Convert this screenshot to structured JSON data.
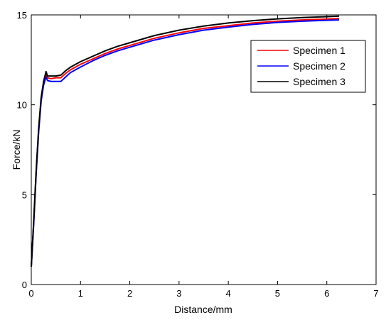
{
  "chart_data": {
    "type": "line",
    "title": "",
    "xlabel": "Distance/mm",
    "ylabel": "Force/kN",
    "xlim": [
      0,
      7
    ],
    "ylim": [
      0,
      15
    ],
    "xticks": [
      0,
      1,
      2,
      3,
      4,
      5,
      6,
      7
    ],
    "yticks": [
      0,
      5,
      10,
      15
    ],
    "grid": false,
    "legend_position": "top-right",
    "series": [
      {
        "name": "Specimen 1",
        "color": "#ff0000",
        "points": [
          [
            0,
            1.0
          ],
          [
            0.05,
            3.5
          ],
          [
            0.1,
            6.3
          ],
          [
            0.15,
            8.6
          ],
          [
            0.2,
            10.3
          ],
          [
            0.25,
            11.2
          ],
          [
            0.3,
            11.7
          ],
          [
            0.33,
            11.5
          ],
          [
            0.4,
            11.45
          ],
          [
            0.5,
            11.5
          ],
          [
            0.6,
            11.5
          ],
          [
            0.7,
            11.75
          ],
          [
            0.8,
            11.95
          ],
          [
            1.0,
            12.25
          ],
          [
            1.25,
            12.55
          ],
          [
            1.5,
            12.85
          ],
          [
            1.75,
            13.1
          ],
          [
            2.0,
            13.3
          ],
          [
            2.5,
            13.7
          ],
          [
            3.0,
            14.0
          ],
          [
            3.5,
            14.25
          ],
          [
            4.0,
            14.4
          ],
          [
            4.5,
            14.55
          ],
          [
            5.0,
            14.65
          ],
          [
            5.5,
            14.72
          ],
          [
            6.0,
            14.77
          ],
          [
            6.25,
            14.8
          ]
        ]
      },
      {
        "name": "Specimen 2",
        "color": "#0000ff",
        "points": [
          [
            0,
            1.0
          ],
          [
            0.05,
            3.4
          ],
          [
            0.1,
            6.2
          ],
          [
            0.15,
            8.5
          ],
          [
            0.2,
            10.2
          ],
          [
            0.25,
            11.1
          ],
          [
            0.3,
            11.55
          ],
          [
            0.33,
            11.35
          ],
          [
            0.4,
            11.3
          ],
          [
            0.5,
            11.3
          ],
          [
            0.6,
            11.3
          ],
          [
            0.7,
            11.55
          ],
          [
            0.8,
            11.8
          ],
          [
            1.0,
            12.1
          ],
          [
            1.25,
            12.45
          ],
          [
            1.5,
            12.75
          ],
          [
            1.75,
            13.0
          ],
          [
            2.0,
            13.2
          ],
          [
            2.5,
            13.6
          ],
          [
            3.0,
            13.9
          ],
          [
            3.5,
            14.15
          ],
          [
            4.0,
            14.32
          ],
          [
            4.5,
            14.47
          ],
          [
            5.0,
            14.58
          ],
          [
            5.5,
            14.65
          ],
          [
            6.0,
            14.7
          ],
          [
            6.25,
            14.72
          ]
        ]
      },
      {
        "name": "Specimen 3",
        "color": "#000000",
        "points": [
          [
            0,
            1.0
          ],
          [
            0.05,
            3.6
          ],
          [
            0.1,
            6.4
          ],
          [
            0.15,
            8.7
          ],
          [
            0.2,
            10.4
          ],
          [
            0.25,
            11.3
          ],
          [
            0.3,
            11.85
          ],
          [
            0.33,
            11.6
          ],
          [
            0.4,
            11.6
          ],
          [
            0.5,
            11.6
          ],
          [
            0.6,
            11.65
          ],
          [
            0.7,
            11.9
          ],
          [
            0.8,
            12.1
          ],
          [
            1.0,
            12.4
          ],
          [
            1.25,
            12.7
          ],
          [
            1.5,
            13.0
          ],
          [
            1.75,
            13.25
          ],
          [
            2.0,
            13.45
          ],
          [
            2.5,
            13.85
          ],
          [
            3.0,
            14.15
          ],
          [
            3.5,
            14.38
          ],
          [
            4.0,
            14.55
          ],
          [
            4.5,
            14.68
          ],
          [
            5.0,
            14.78
          ],
          [
            5.5,
            14.85
          ],
          [
            6.0,
            14.9
          ],
          [
            6.25,
            14.93
          ]
        ]
      }
    ]
  }
}
